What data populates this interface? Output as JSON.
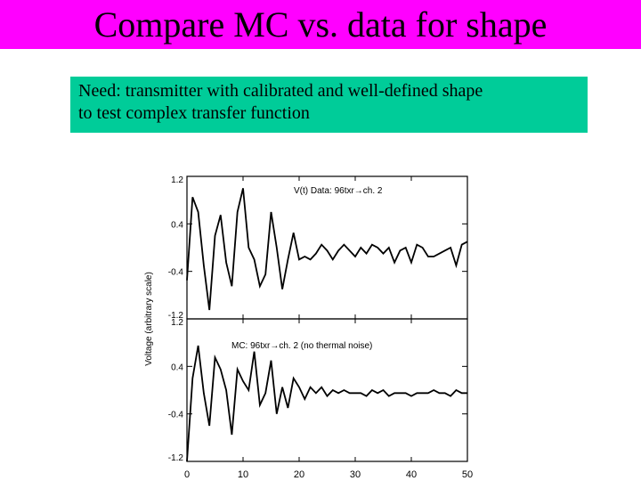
{
  "slide": {
    "title": "Compare MC vs. data for shape",
    "note_line1": "Need: transmitter with calibrated and well-defined shape",
    "note_line2": "to test complex transfer function"
  },
  "colors": {
    "title_bar": "#ff00ff",
    "note_box": "#00cc99",
    "trace": "#000000"
  },
  "chart_data": {
    "type": "line",
    "ylabel": "Voltage (arbitrary scale)",
    "x_ticks": [
      "0",
      "10",
      "20",
      "30",
      "40",
      "50"
    ],
    "xlim": [
      0,
      50
    ],
    "grid": false,
    "panels": [
      {
        "label": "V(t) Data: 96txr→ch. 2",
        "ylim": [
          -1.2,
          1.2
        ],
        "y_ticks": [
          "1.2",
          "0.4",
          "-0.4",
          "-1.2"
        ],
        "y": [
          -0.55,
          0.85,
          0.6,
          -0.3,
          -1.05,
          0.2,
          0.55,
          -0.25,
          -0.65,
          0.6,
          1.0,
          0.0,
          -0.2,
          -0.65,
          -0.45,
          0.6,
          0.0,
          -0.7,
          -0.2,
          0.25,
          -0.2,
          -0.15,
          -0.2,
          -0.1,
          0.05,
          -0.05,
          -0.2,
          -0.05,
          0.05,
          -0.05,
          -0.15,
          0.0,
          -0.1,
          0.05,
          0.0,
          -0.1,
          0.0,
          -0.25,
          -0.05,
          0.0,
          -0.25,
          0.05,
          0.0,
          -0.15,
          -0.15,
          -0.1,
          -0.05,
          0.0,
          -0.3,
          0.05,
          0.1
        ]
      },
      {
        "label": "MC: 96txr→ch. 2 (no thermal noise)",
        "ylim": [
          -1.2,
          1.2
        ],
        "y_ticks": [
          "1.2",
          "0.4",
          "-0.4",
          "-1.2"
        ],
        "y": [
          -1.2,
          0.2,
          0.75,
          -0.05,
          -0.6,
          0.55,
          0.35,
          0.0,
          -0.75,
          0.35,
          0.15,
          0.0,
          0.65,
          -0.25,
          -0.05,
          0.5,
          -0.4,
          0.05,
          -0.3,
          0.2,
          0.05,
          -0.15,
          0.05,
          -0.05,
          0.05,
          -0.1,
          0.0,
          -0.05,
          0.0,
          -0.05,
          -0.05,
          -0.05,
          -0.1,
          0.0,
          -0.05,
          0.0,
          -0.1,
          -0.05,
          -0.05,
          -0.05,
          -0.1,
          -0.05,
          -0.05,
          -0.05,
          0.0,
          -0.05,
          -0.05,
          -0.1,
          0.0,
          -0.05,
          -0.05
        ]
      }
    ]
  }
}
